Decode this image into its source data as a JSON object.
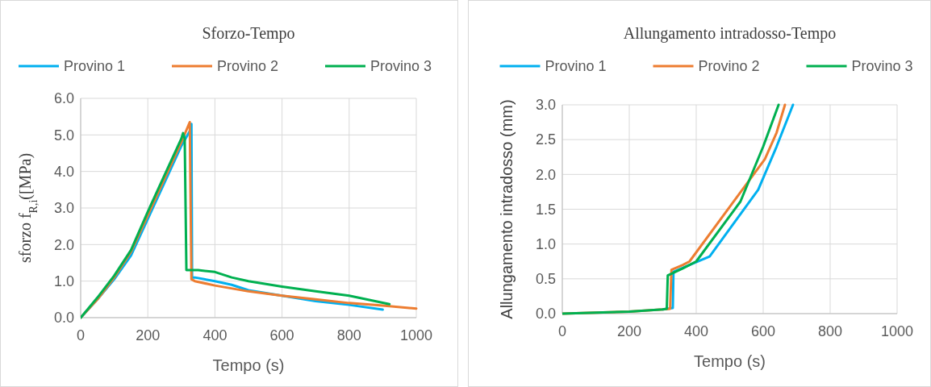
{
  "chart_data": [
    {
      "type": "line",
      "title": "Sforzo-Tempo",
      "xlabel": "Tempo (s)",
      "ylabel": "sforzo f$_{R,i}$([MPa)",
      "legend": "top",
      "grid": true,
      "line_style": "solid",
      "marker": "none",
      "xlim": [
        0,
        1000
      ],
      "xticks": [
        0,
        200,
        400,
        600,
        800,
        1000
      ],
      "ylim": [
        0,
        6
      ],
      "yticks": [
        {
          "value": 0,
          "label": "0.0"
        },
        {
          "value": 1,
          "label": "1.0"
        },
        {
          "value": 2,
          "label": "2.0"
        },
        {
          "value": 3,
          "label": "3.0"
        },
        {
          "value": 4,
          "label": "4.0"
        },
        {
          "value": 5,
          "label": "5.0"
        },
        {
          "value": 6,
          "label": "6.0"
        }
      ],
      "series": [
        {
          "name": "Provino 1",
          "color": "#00b0f0",
          "x": [
            0,
            50,
            100,
            150,
            200,
            250,
            300,
            325,
            330,
            332,
            340,
            400,
            450,
            500,
            600,
            700,
            800,
            900
          ],
          "values": [
            0,
            0.5,
            1.05,
            1.7,
            2.7,
            3.7,
            4.7,
            5.1,
            5.3,
            1.1,
            1.1,
            1.0,
            0.9,
            0.75,
            0.6,
            0.45,
            0.35,
            0.22
          ]
        },
        {
          "name": "Provino 2",
          "color": "#ed7d31",
          "x": [
            0,
            50,
            100,
            150,
            200,
            250,
            300,
            325,
            330,
            340,
            400,
            500,
            600,
            700,
            800,
            900,
            1000
          ],
          "values": [
            0,
            0.5,
            1.1,
            1.8,
            2.8,
            3.8,
            4.8,
            5.35,
            1.05,
            1.0,
            0.88,
            0.72,
            0.6,
            0.5,
            0.4,
            0.33,
            0.25
          ]
        },
        {
          "name": "Provino 3",
          "color": "#00b050",
          "x": [
            0,
            50,
            100,
            150,
            200,
            250,
            300,
            305,
            310,
            315,
            350,
            400,
            450,
            500,
            600,
            700,
            800,
            920
          ],
          "values": [
            0,
            0.55,
            1.15,
            1.85,
            2.9,
            3.9,
            4.9,
            5.05,
            4.9,
            1.3,
            1.3,
            1.25,
            1.1,
            1.0,
            0.85,
            0.72,
            0.6,
            0.37
          ]
        }
      ]
    },
    {
      "type": "line",
      "title": "Allungamento intradosso-Tempo",
      "xlabel": "Tempo (s)",
      "ylabel": "Allungamento intradosso (mm)",
      "legend": "top",
      "grid": true,
      "line_style": "solid",
      "marker": "none",
      "xlim": [
        0,
        1000
      ],
      "xticks": [
        0,
        200,
        400,
        600,
        800,
        1000
      ],
      "ylim": [
        0,
        3
      ],
      "yticks": [
        {
          "value": 0,
          "label": "0.0"
        },
        {
          "value": 0.5,
          "label": "0.5"
        },
        {
          "value": 1,
          "label": "1.0"
        },
        {
          "value": 1.5,
          "label": "1.5"
        },
        {
          "value": 2,
          "label": "2.0"
        },
        {
          "value": 2.5,
          "label": "2.5"
        },
        {
          "value": 3,
          "label": "3.0"
        }
      ],
      "series": [
        {
          "name": "Provino 1",
          "color": "#00b0f0",
          "x": [
            300,
            330,
            332,
            380,
            440,
            585,
            640,
            689
          ],
          "values": [
            0.06,
            0.08,
            0.6,
            0.7,
            0.82,
            1.78,
            2.4,
            3.0
          ]
        },
        {
          "name": "Provino 2",
          "color": "#ed7d31",
          "x": [
            0,
            200,
            300,
            322,
            326,
            360,
            380,
            605,
            640,
            665
          ],
          "values": [
            0,
            0.03,
            0.06,
            0.07,
            0.63,
            0.7,
            0.75,
            2.22,
            2.6,
            3.0
          ]
        },
        {
          "name": "Provino 3",
          "color": "#00b050",
          "x": [
            0,
            200,
            300,
            312,
            315,
            360,
            400,
            532,
            600,
            646
          ],
          "values": [
            0,
            0.03,
            0.06,
            0.07,
            0.55,
            0.65,
            0.75,
            1.61,
            2.4,
            3.0
          ]
        }
      ]
    }
  ]
}
